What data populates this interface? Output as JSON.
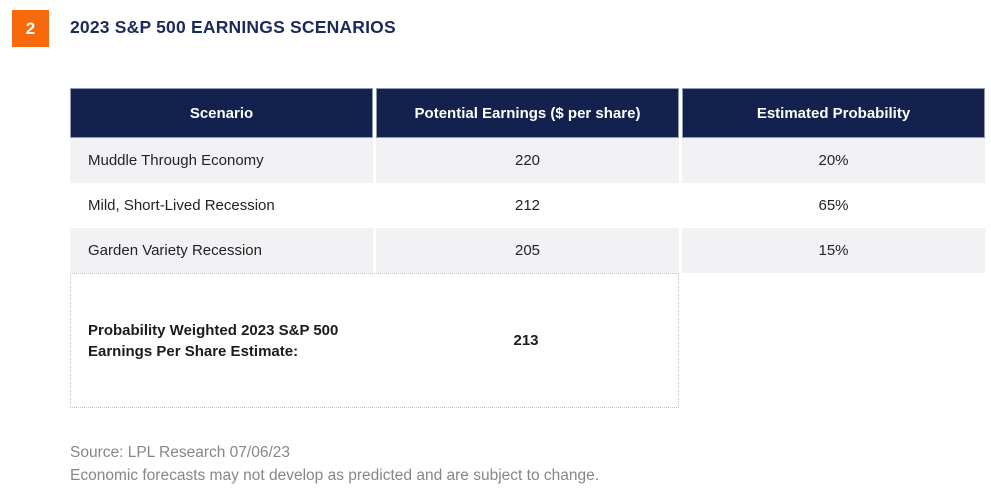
{
  "badge": {
    "number": "2"
  },
  "title": "2023 S&P 500 EARNINGS SCENARIOS",
  "colors": {
    "orange": "#F6690C",
    "navy": "#12214D",
    "navy-text": "#1B2A5B",
    "row-gray": "#F2F2F4"
  },
  "table": {
    "headers": [
      "Scenario",
      "Potential Earnings ($ per share)",
      "Estimated Probability"
    ],
    "rows": [
      {
        "scenario": "Muddle Through Economy",
        "earnings": "220",
        "probability": "20%"
      },
      {
        "scenario": "Mild, Short-Lived Recession",
        "earnings": "212",
        "probability": "65%"
      },
      {
        "scenario": "Garden Variety Recession",
        "earnings": "205",
        "probability": "15%"
      }
    ],
    "summary": {
      "label": "Probability Weighted 2023 S&P 500 Earnings Per Share Estimate:",
      "value": "213"
    }
  },
  "footer": {
    "source": "Source: LPL Research 07/06/23",
    "disclaimer": "Economic forecasts may not develop as predicted and are subject to change."
  },
  "chart_data": {
    "type": "table",
    "title": "2023 S&P 500 EARNINGS SCENARIOS",
    "columns": [
      "Scenario",
      "Potential Earnings ($ per share)",
      "Estimated Probability"
    ],
    "rows": [
      [
        "Muddle Through Economy",
        220,
        "20%"
      ],
      [
        "Mild, Short-Lived Recession",
        212,
        "65%"
      ],
      [
        "Garden Variety Recession",
        205,
        "15%"
      ]
    ],
    "summary_row": {
      "label": "Probability Weighted 2023 S&P 500 Earnings Per Share Estimate:",
      "value": 213
    },
    "source": "Source: LPL Research 07/06/23",
    "note": "Economic forecasts may not develop as predicted and are subject to change."
  }
}
